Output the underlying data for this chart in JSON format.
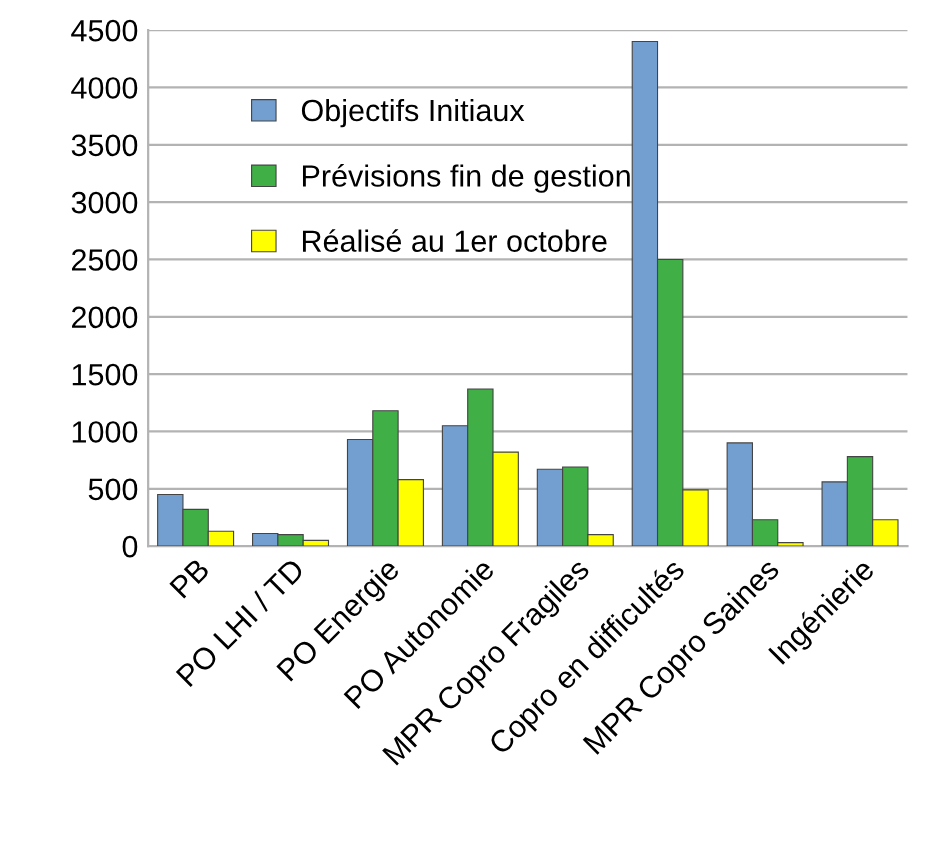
{
  "chart_data": {
    "type": "bar",
    "categories": [
      "PB",
      "PO LHI / TD",
      "PO Energie",
      "PO Autonomie",
      "MPR Copro Fragiles",
      "Copro en difficultés",
      "MPR Copro Saines",
      "Ingénierie"
    ],
    "series": [
      {
        "name": "Objectifs Initiaux",
        "color": "#729fcf",
        "values": [
          450,
          110,
          930,
          1050,
          670,
          4400,
          900,
          560
        ]
      },
      {
        "name": "Prévisions fin de gestion",
        "color": "#3faf46",
        "values": [
          320,
          100,
          1180,
          1370,
          690,
          2500,
          230,
          780
        ]
      },
      {
        "name": "Réalisé au 1er octobre",
        "color": "#ffff00",
        "values": [
          130,
          50,
          580,
          820,
          100,
          490,
          30,
          230
        ]
      }
    ],
    "ylim": [
      0,
      4500
    ],
    "yticks": [
      0,
      500,
      1000,
      1500,
      2000,
      2500,
      3000,
      3500,
      4000,
      4500
    ],
    "grid": "y",
    "legend": "top left"
  }
}
